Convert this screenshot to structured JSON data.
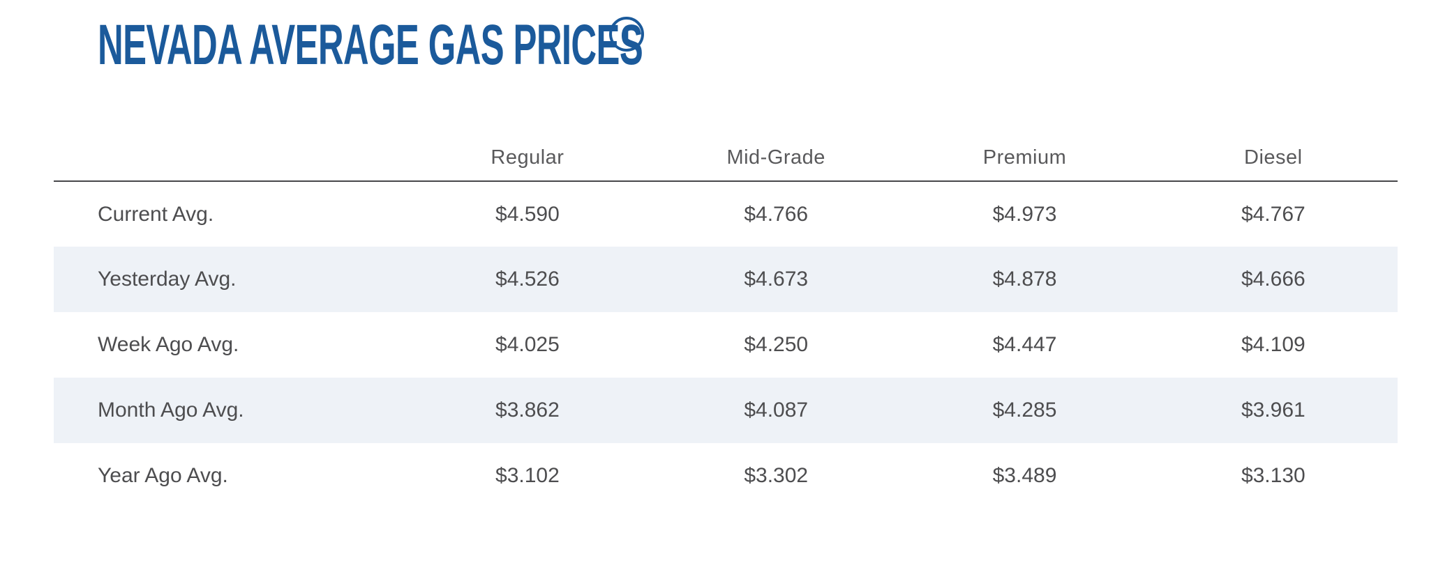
{
  "page": {
    "title": "NEVADA AVERAGE GAS PRICES",
    "info_icon_glyph": "i"
  },
  "colors": {
    "title_blue": "#1b5a9b",
    "header_text": "#59595b",
    "body_text": "#4d4d4f",
    "stripe_row": "#eef2f7",
    "header_rule": "#47474a",
    "page_bg": "#ffffff"
  },
  "table": {
    "columns": [
      "Regular",
      "Mid-Grade",
      "Premium",
      "Diesel"
    ],
    "rows": [
      {
        "label": "Current Avg.",
        "values": [
          "$4.590",
          "$4.766",
          "$4.973",
          "$4.767"
        ]
      },
      {
        "label": "Yesterday Avg.",
        "values": [
          "$4.526",
          "$4.673",
          "$4.878",
          "$4.666"
        ]
      },
      {
        "label": "Week Ago Avg.",
        "values": [
          "$4.025",
          "$4.250",
          "$4.447",
          "$4.109"
        ]
      },
      {
        "label": "Month Ago Avg.",
        "values": [
          "$3.862",
          "$4.087",
          "$4.285",
          "$3.961"
        ]
      },
      {
        "label": "Year Ago Avg.",
        "values": [
          "$3.102",
          "$3.302",
          "$3.489",
          "$3.130"
        ]
      }
    ]
  },
  "chart_data": {
    "type": "table",
    "title": "Nevada Average Gas Prices",
    "columns": [
      "Regular",
      "Mid-Grade",
      "Premium",
      "Diesel"
    ],
    "row_labels": [
      "Current Avg.",
      "Yesterday Avg.",
      "Week Ago Avg.",
      "Month Ago Avg.",
      "Year Ago Avg."
    ],
    "values": [
      [
        4.59,
        4.766,
        4.973,
        4.767
      ],
      [
        4.526,
        4.673,
        4.878,
        4.666
      ],
      [
        4.025,
        4.25,
        4.447,
        4.109
      ],
      [
        3.862,
        4.087,
        4.285,
        3.961
      ],
      [
        3.102,
        3.302,
        3.489,
        3.13
      ]
    ]
  }
}
